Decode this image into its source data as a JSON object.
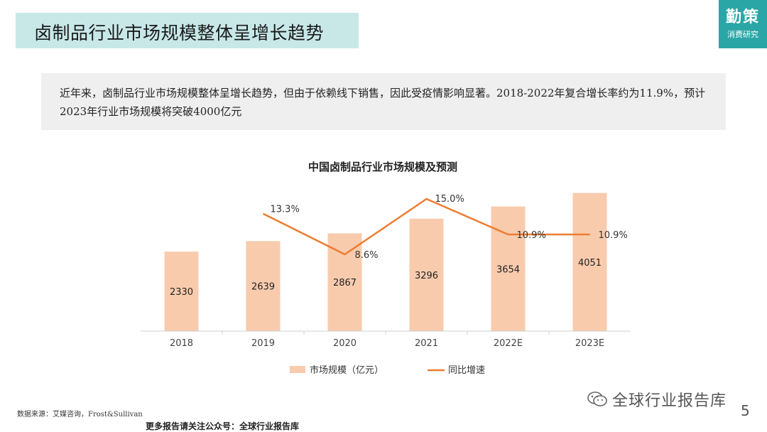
{
  "header": {
    "title": "卤制品行业市场规模整体呈增长趋势",
    "logo_main": "勤策",
    "logo_sub": "消费研究"
  },
  "summary": {
    "text": "近年来，卤制品行业市场规模整体呈增长趋势，但由于依赖线下销售，因此受疫情影响显著。2018-2022年复合增长率约为11.9%，预计2023年行业市场规模将突破4000亿元"
  },
  "chart_data": {
    "type": "bar",
    "title": "中国卤制品行业市场规模及预测",
    "categories": [
      "2018",
      "2019",
      "2020",
      "2021",
      "2022E",
      "2023E"
    ],
    "series": [
      {
        "name": "市场规模（亿元）",
        "type": "bar",
        "values": [
          2330,
          2639,
          2867,
          3296,
          3654,
          4051
        ],
        "labels": [
          "2330",
          "2639",
          "2867",
          "3296",
          "3654",
          "4051"
        ],
        "color": "#f8cbad"
      },
      {
        "name": "同比增速",
        "type": "line",
        "values": [
          null,
          13.3,
          8.6,
          15.0,
          10.9,
          10.9
        ],
        "labels": [
          "",
          "13.3%",
          "8.6%",
          "15.0%",
          "10.9%",
          "10.9%"
        ],
        "color": "#ed7d31"
      }
    ],
    "ylim_left": [
      0,
      4500
    ],
    "ylim_right": [
      0,
      16
    ],
    "grid": false,
    "legend_position": "bottom"
  },
  "footer": {
    "source": "数据来源：艾媒咨询，Frost&Sullivan",
    "more": "更多报告请关注公众号：全球行业报告库",
    "watermark": "全球行业报告库",
    "watermark_icon": "wechat-icon",
    "page_number": "5"
  }
}
